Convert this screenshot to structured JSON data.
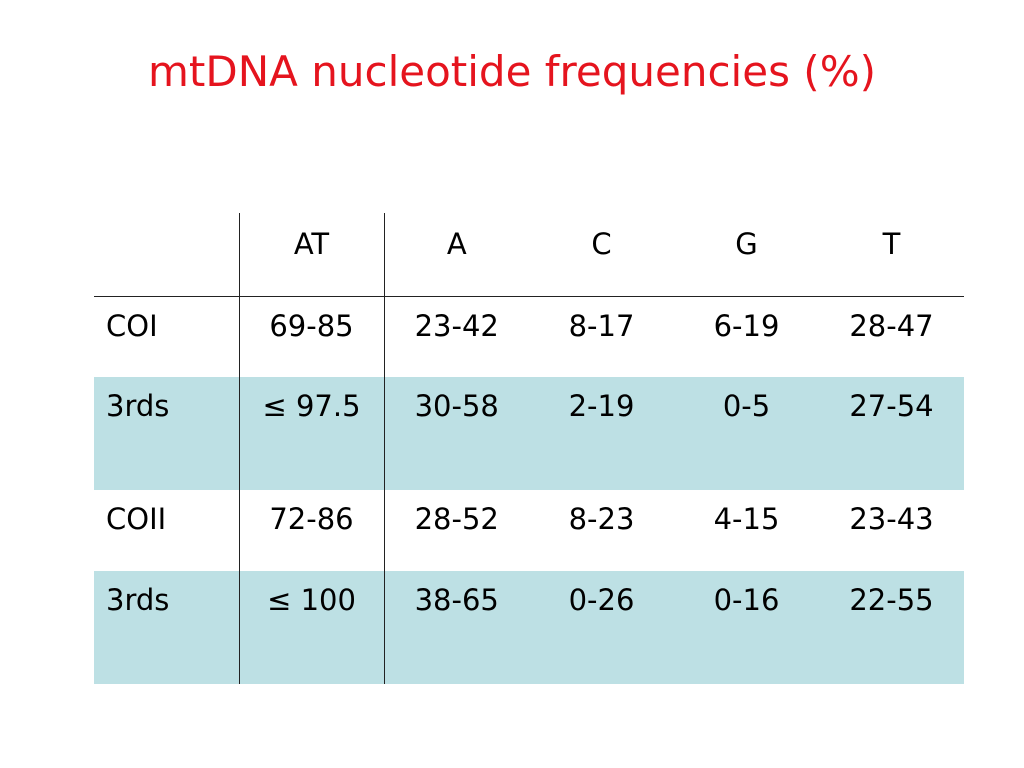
{
  "title": "mtDNA nucleotide frequencies (%)",
  "table": {
    "headers": [
      "",
      "AT",
      "A",
      "C",
      "G",
      "T"
    ],
    "rows": [
      {
        "label": "COI",
        "cells": [
          "69-85",
          "23-42",
          "8-17",
          "6-19",
          "28-47"
        ],
        "shaded": false
      },
      {
        "label": "3rds",
        "cells": [
          "≤ 97.5",
          "30-58",
          "2-19",
          "0-5",
          "27-54"
        ],
        "shaded": true
      },
      {
        "label": "COII",
        "cells": [
          "72-86",
          "28-52",
          "8-23",
          "4-15",
          "23-43"
        ],
        "shaded": false
      },
      {
        "label": "3rds",
        "cells": [
          "≤ 100",
          "38-65",
          "0-26",
          "0-16",
          "22-55"
        ],
        "shaded": true
      }
    ]
  },
  "colors": {
    "title": "#e5141e",
    "shaded_row": "#bde0e4",
    "rule": "#222222"
  }
}
